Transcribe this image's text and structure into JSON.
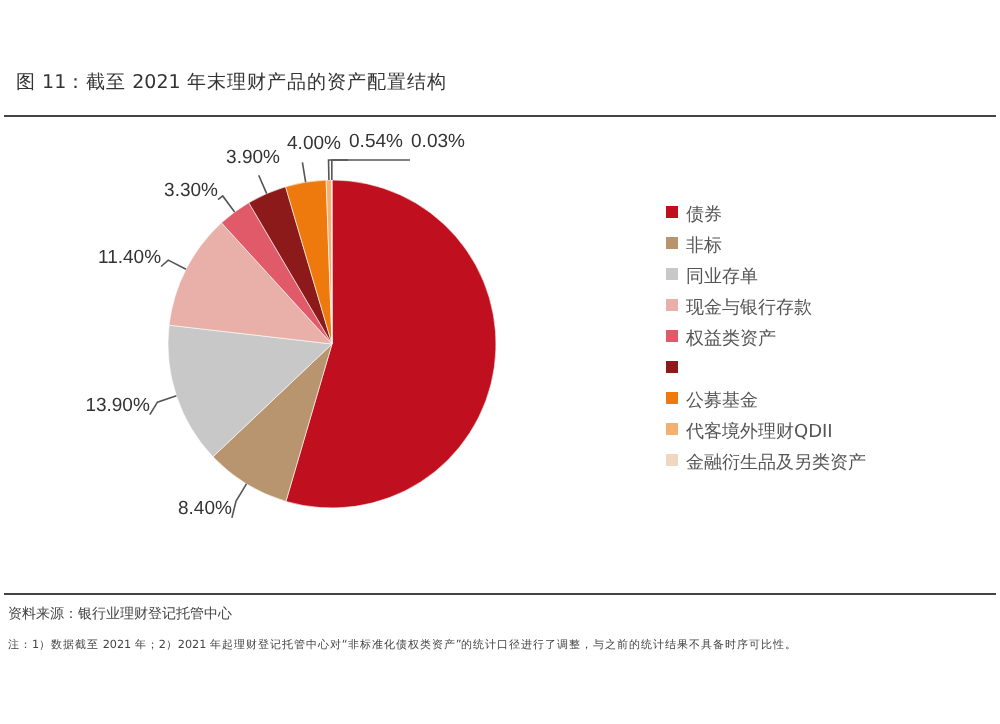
{
  "chart_data": {
    "type": "pie",
    "title": "图 11：截至 2021 年末理财产品的资产配置结构",
    "categories": [
      "债券",
      "非标",
      "同业存单",
      "现金与银行存款",
      "权益类资产",
      null,
      "公募基金",
      "代客境外理财QDII",
      "金融衍生品及另类资产"
    ],
    "values": [
      54.53,
      8.4,
      13.9,
      11.4,
      3.3,
      3.9,
      4.0,
      0.54,
      0.03
    ],
    "value_labels": [
      null,
      "8.40%",
      "13.90%",
      "11.40%",
      "3.30%",
      "3.90%",
      "4.00%",
      "0.54%",
      "0.03%"
    ],
    "colors": [
      "#c00f1e",
      "#b8956e",
      "#c8c8c8",
      "#e8b0a8",
      "#e05a6a",
      "#8c1a1a",
      "#ee7a0e",
      "#f4b070",
      "#f0d8c0"
    ],
    "legend": "right",
    "annotations": [
      "资料来源：银行业理财登记托管中心",
      "注：1）数据截至 2021 年；2）2021 年起理财登记托管中心对“非标准化债权类资产”的统计口径进行了调整，与之前的统计结果不具备时序可比性。"
    ]
  }
}
